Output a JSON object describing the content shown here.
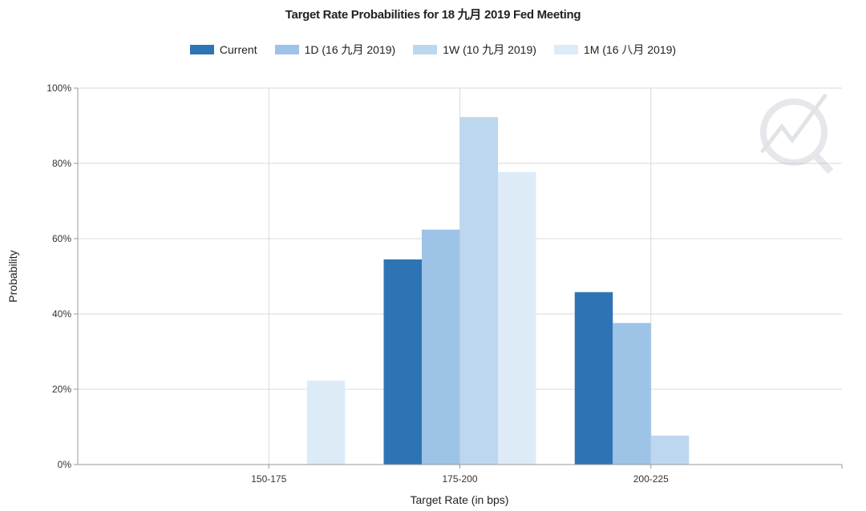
{
  "chart_data": {
    "type": "bar",
    "title": "Target Rate Probabilities for 18 九月 2019 Fed Meeting",
    "xlabel": "Target Rate (in bps)",
    "ylabel": "Probability",
    "categories": [
      "150-175",
      "175-200",
      "200-225"
    ],
    "yticks": [
      "0%",
      "20%",
      "40%",
      "60%",
      "80%",
      "100%"
    ],
    "ylim": [
      0,
      100
    ],
    "grid": true,
    "legend_position": "top-center",
    "series": [
      {
        "name": "Current",
        "color": "#2e74b5",
        "values": [
          0,
          54.5,
          45.8
        ]
      },
      {
        "name": "1D (16 九月 2019)",
        "color": "#9dc3e6",
        "values": [
          0,
          62.4,
          37.6
        ]
      },
      {
        "name": "1W (10 九月 2019)",
        "color": "#bdd7ee",
        "values": [
          0,
          92.3,
          7.7
        ]
      },
      {
        "name": "1M (16 八月 2019)",
        "color": "#ddebf7",
        "values": [
          22.3,
          77.7,
          0
        ]
      }
    ]
  }
}
